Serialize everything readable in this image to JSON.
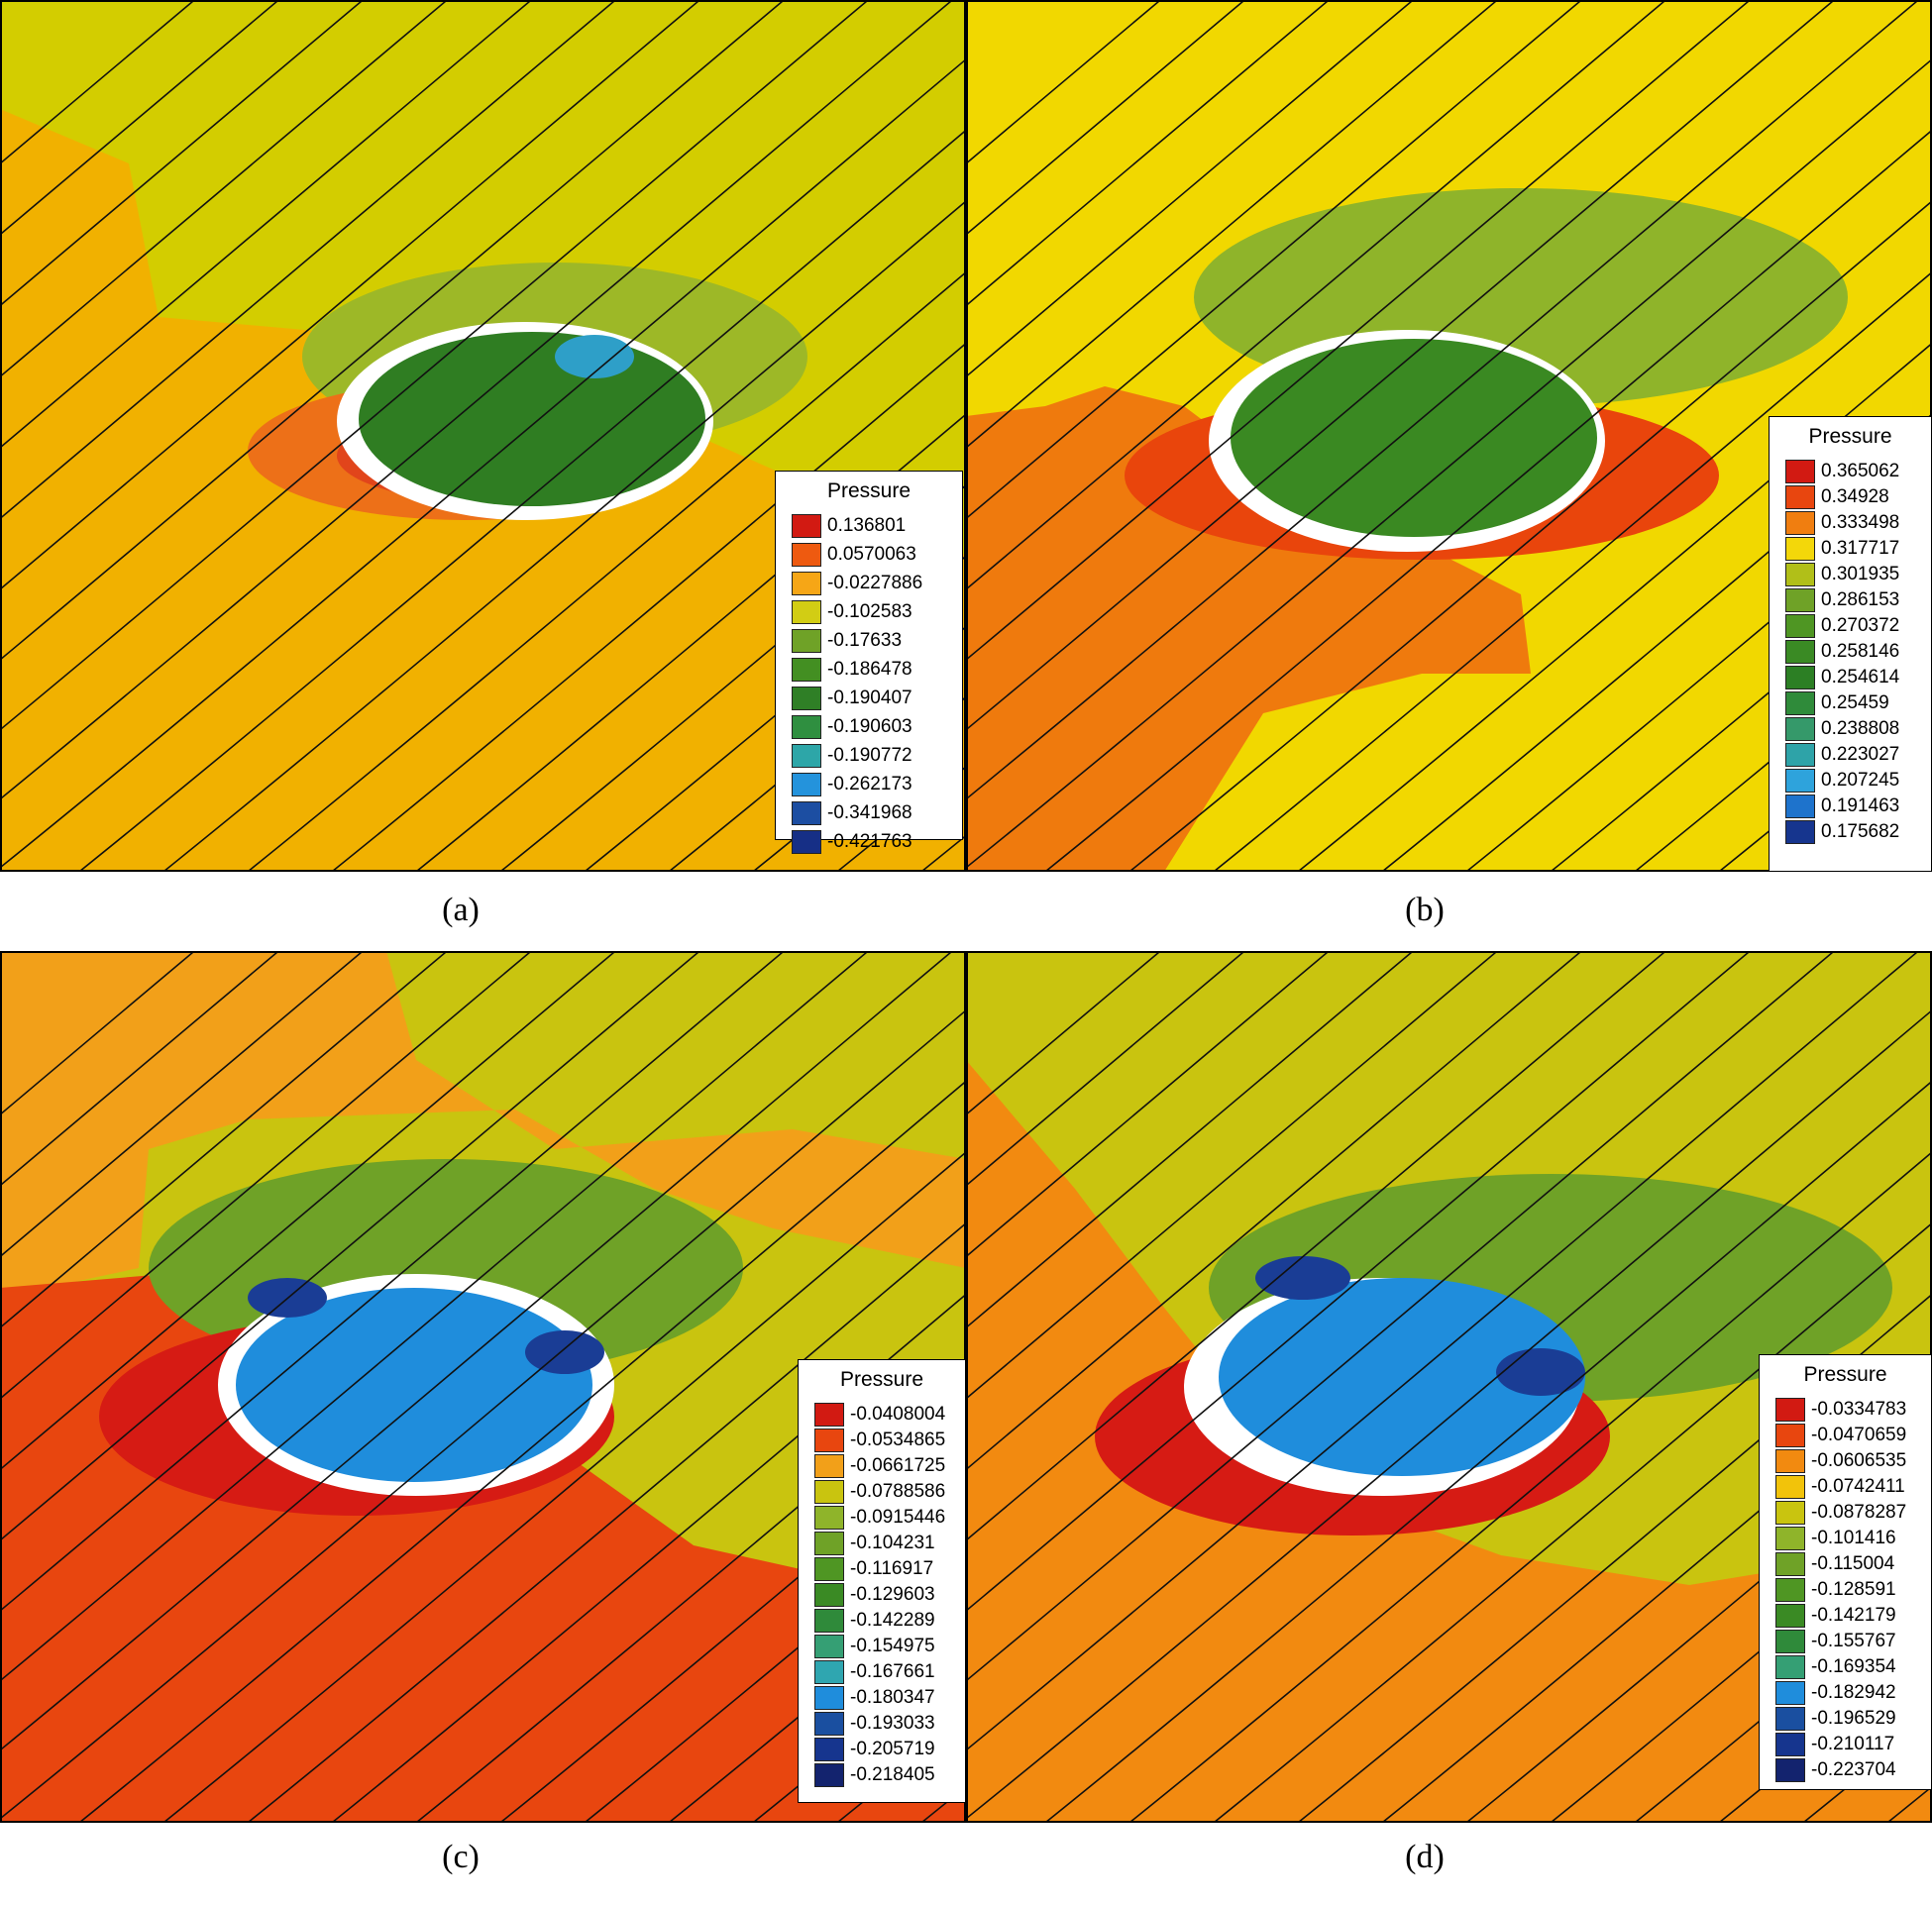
{
  "chart_data": [
    {
      "type": "contour",
      "panel_label": "(a)",
      "legend": {
        "title": "Pressure",
        "levels": [
          "0.136801",
          "0.0570063",
          "-0.0227886",
          "-0.102583",
          "-0.17633",
          "-0.186478",
          "-0.190407",
          "-0.190603",
          "-0.190772",
          "-0.262173",
          "-0.341968",
          "-0.421763"
        ],
        "colors": [
          "#d21a12",
          "#ee5a10",
          "#f6a616",
          "#d2cd14",
          "#6fa227",
          "#438f22",
          "#2f7f26",
          "#2f8f40",
          "#2da6a8",
          "#2493dc",
          "#1c4ea2",
          "#162f86"
        ]
      },
      "background_colors": {
        "upper": "#d3cd00",
        "lower": "#f1b100",
        "high": "#ed7018",
        "ring": "#e1451b",
        "halo": "#9db827",
        "inner": "#2f7d22",
        "vortex": "#2e9fc8"
      }
    },
    {
      "type": "contour",
      "panel_label": "(b)",
      "legend": {
        "title": "Pressure",
        "levels": [
          "0.365062",
          "0.34928",
          "0.333498",
          "0.317717",
          "0.301935",
          "0.286153",
          "0.270372",
          "0.258146",
          "0.254614",
          "0.25459",
          "0.238808",
          "0.223027",
          "0.207245",
          "0.191463",
          "0.175682"
        ],
        "colors": [
          "#d21a12",
          "#e8460f",
          "#f07e10",
          "#f3d70a",
          "#b1bf18",
          "#6fa227",
          "#4f9623",
          "#3a8a24",
          "#2c7f24",
          "#2f8b3a",
          "#35996a",
          "#2ea3a8",
          "#2ea3dc",
          "#1e73cc",
          "#16358e"
        ]
      },
      "background_colors": {
        "upper": "#f1d800",
        "lower": "#f1d800",
        "high": "#ef7a0d",
        "ring": "#e9450c",
        "halo": "#8fb42a",
        "inner": "#3a8922",
        "vortex": "#2e9fc8"
      }
    },
    {
      "type": "contour",
      "panel_label": "(c)",
      "legend": {
        "title": "Pressure",
        "levels": [
          "-0.0408004",
          "-0.0534865",
          "-0.0661725",
          "-0.0788586",
          "-0.0915446",
          "-0.104231",
          "-0.116917",
          "-0.129603",
          "-0.142289",
          "-0.154975",
          "-0.167661",
          "-0.180347",
          "-0.193033",
          "-0.205719",
          "-0.218405"
        ],
        "colors": [
          "#d21a12",
          "#e8460f",
          "#f2a019",
          "#c9c40f",
          "#8fb42a",
          "#6fa227",
          "#4f9623",
          "#3a8a24",
          "#2f8a3a",
          "#359f74",
          "#2fa6b0",
          "#1f8ddc",
          "#1a4fa0",
          "#16358e",
          "#13236e"
        ]
      },
      "background_colors": {
        "upper": "#c9c40f",
        "lower": "#e8460f",
        "high": "#d61b14",
        "ring": "#d61b14",
        "halo": "#6fa227",
        "inner": "#1f8ddc",
        "vortex": "#1a3d95"
      }
    },
    {
      "type": "contour",
      "panel_label": "(d)",
      "legend": {
        "title": "Pressure",
        "levels": [
          "-0.0334783",
          "-0.0470659",
          "-0.0606535",
          "-0.0742411",
          "-0.0878287",
          "-0.101416",
          "-0.115004",
          "-0.128591",
          "-0.142179",
          "-0.155767",
          "-0.169354",
          "-0.182942",
          "-0.196529",
          "-0.210117",
          "-0.223704"
        ],
        "colors": [
          "#d21a12",
          "#e8460f",
          "#f28a10",
          "#f2c30a",
          "#c9c40f",
          "#8fb42a",
          "#6fa227",
          "#4f9623",
          "#3a8a24",
          "#2f8a3a",
          "#359f74",
          "#1f8ddc",
          "#1a4fa0",
          "#16358e",
          "#13236e"
        ]
      },
      "background_colors": {
        "upper": "#c9c40f",
        "lower": "#f28a10",
        "high": "#d61b14",
        "ring": "#d61b14",
        "halo": "#6fa227",
        "inner": "#1f8ddc",
        "vortex": "#1a3d95"
      }
    }
  ]
}
